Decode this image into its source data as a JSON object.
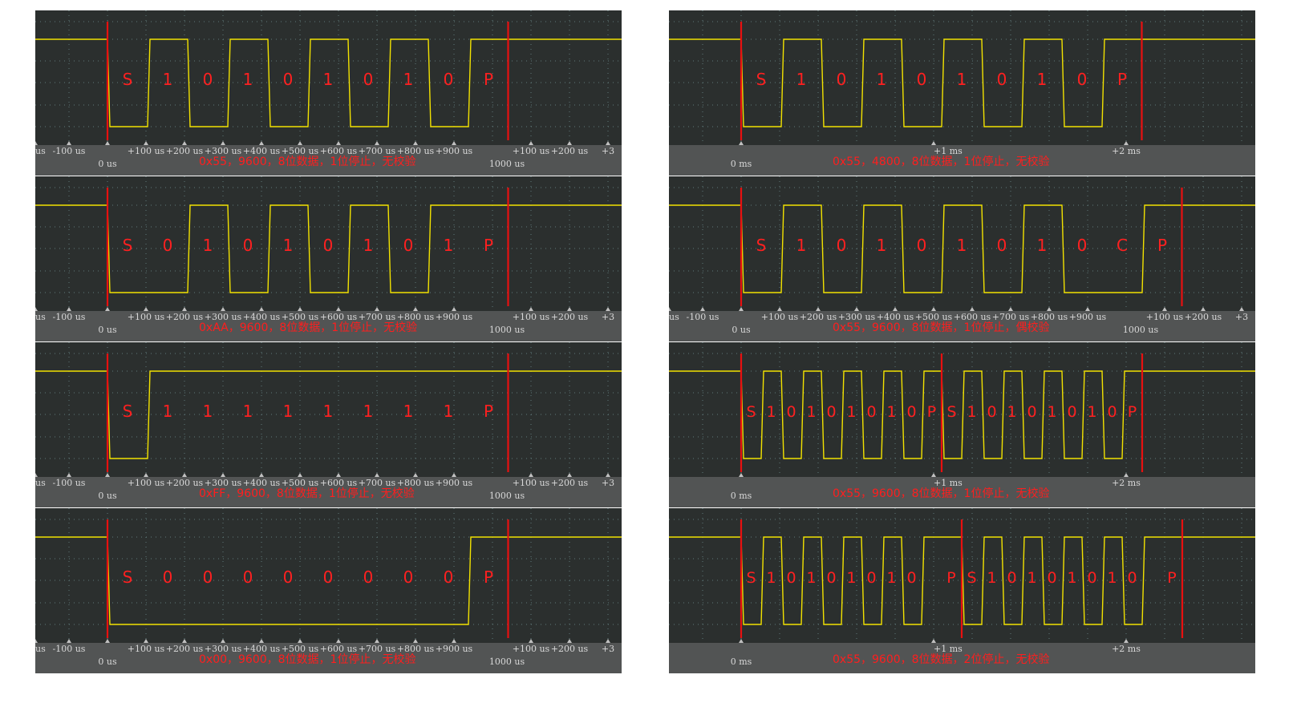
{
  "colors": {
    "panel_bg": "#2b2f2e",
    "axis_strip_bg": "#525454",
    "signal": "#f2e200",
    "marker": "#e81010",
    "label": "#ff2020",
    "caption": "#ff1e1e",
    "grid": "#5f7a7a",
    "tick_text": "#d8d8d8"
  },
  "panels": [
    {
      "id": "0x55-9600-8n1",
      "caption": "0x55，9600，8位数据，1位停止，无校验",
      "bits": [
        "S",
        "1",
        "0",
        "1",
        "0",
        "1",
        "0",
        "1",
        "0",
        "P"
      ],
      "levels": [
        0,
        1,
        0,
        1,
        0,
        1,
        0,
        1,
        0
      ],
      "scale": "us",
      "tick_labels": [
        "us",
        "-100 us",
        "+100 us",
        "+200 us",
        "+300 us",
        "+400 us",
        "+500 us",
        "+600 us",
        "+700 us",
        "+800 us",
        "+900 us",
        "+100 us",
        "+200 us",
        "+3"
      ],
      "zero_label": "0 us",
      "end_label": "1000 us"
    },
    {
      "id": "0xAA-9600-8n1",
      "caption": "0xAA，9600，8位数据，1位停止，无校验",
      "bits": [
        "S",
        "0",
        "1",
        "0",
        "1",
        "0",
        "1",
        "0",
        "1",
        "P"
      ],
      "levels": [
        0,
        0,
        1,
        0,
        1,
        0,
        1,
        0,
        1
      ],
      "scale": "us",
      "tick_labels": [
        "us",
        "-100 us",
        "+100 us",
        "+200 us",
        "+300 us",
        "+400 us",
        "+500 us",
        "+600 us",
        "+700 us",
        "+800 us",
        "+900 us",
        "+100 us",
        "+200 us",
        "+3"
      ],
      "zero_label": "0 us",
      "end_label": "1000 us"
    },
    {
      "id": "0xFF-9600-8n1",
      "caption": "0xFF，9600，8位数据，1位停止，无校验",
      "bits": [
        "S",
        "1",
        "1",
        "1",
        "1",
        "1",
        "1",
        "1",
        "1",
        "P"
      ],
      "levels": [
        0,
        1,
        1,
        1,
        1,
        1,
        1,
        1,
        1
      ],
      "scale": "us",
      "tick_labels": [
        "us",
        "-100 us",
        "+100 us",
        "+200 us",
        "+300 us",
        "+400 us",
        "+500 us",
        "+600 us",
        "+700 us",
        "+800 us",
        "+900 us",
        "+100 us",
        "+200 us",
        "+3"
      ],
      "zero_label": "0 us",
      "end_label": "1000 us"
    },
    {
      "id": "0x00-9600-8n1",
      "caption": "0x00，9600，8位数据，1位停止，无校验",
      "bits": [
        "S",
        "0",
        "0",
        "0",
        "0",
        "0",
        "0",
        "0",
        "0",
        "P"
      ],
      "levels": [
        0,
        0,
        0,
        0,
        0,
        0,
        0,
        0,
        0
      ],
      "scale": "us",
      "tick_labels": [
        "us",
        "-100 us",
        "+100 us",
        "+200 us",
        "+300 us",
        "+400 us",
        "+500 us",
        "+600 us",
        "+700 us",
        "+800 us",
        "+900 us",
        "+100 us",
        "+200 us",
        "+3"
      ],
      "zero_label": "0 us",
      "end_label": "1000 us"
    },
    {
      "id": "0x55-4800-8n1",
      "caption": "0x55，4800，8位数据，1位停止，无校验",
      "bits": [
        "S",
        "1",
        "0",
        "1",
        "0",
        "1",
        "0",
        "1",
        "0",
        "P"
      ],
      "levels": [
        0,
        1,
        0,
        1,
        0,
        1,
        0,
        1,
        0
      ],
      "scale": "ms",
      "tick_labels": [
        "+1 ms",
        "+2 ms"
      ],
      "zero_label": "0 ms",
      "end_label": ""
    },
    {
      "id": "0x55-9600-8e1",
      "caption": "0x55，9600，8位数据，1位停止，偶校验",
      "bits": [
        "S",
        "1",
        "0",
        "1",
        "0",
        "1",
        "0",
        "1",
        "0",
        "C",
        "P"
      ],
      "levels": [
        0,
        1,
        0,
        1,
        0,
        1,
        0,
        1,
        0,
        0
      ],
      "scale": "us",
      "tick_labels": [
        "us",
        "-100 us",
        "+100 us",
        "+200 us",
        "+300 us",
        "+400 us",
        "+500 us",
        "+600 us",
        "+700 us",
        "+800 us",
        "+900 us",
        "+100 us",
        "+200 us",
        "+3"
      ],
      "zero_label": "0 us",
      "end_label": "1000 us"
    },
    {
      "id": "0x55x2-9600-8n1",
      "caption": "0x55，9600，8位数据，1位停止，无校验",
      "frames": [
        {
          "bits": [
            "S",
            "1",
            "0",
            "1",
            "0",
            "1",
            "0",
            "1",
            "0",
            "P"
          ],
          "levels": [
            0,
            1,
            0,
            1,
            0,
            1,
            0,
            1,
            0
          ],
          "stop_bits": 1
        },
        {
          "bits": [
            "S",
            "1",
            "0",
            "1",
            "0",
            "1",
            "0",
            "1",
            "0",
            "P"
          ],
          "levels": [
            0,
            1,
            0,
            1,
            0,
            1,
            0,
            1,
            0
          ],
          "stop_bits": 1
        }
      ],
      "scale": "ms",
      "tick_labels": [
        "+1 ms",
        "+2 ms"
      ],
      "zero_label": "0 ms",
      "end_label": ""
    },
    {
      "id": "0x55x2-9600-8n2",
      "caption": "0x55，9600，8位数据，2位停止，无校验",
      "frames": [
        {
          "bits": [
            "S",
            "1",
            "0",
            "1",
            "0",
            "1",
            "0",
            "1",
            "0",
            "P"
          ],
          "levels": [
            0,
            1,
            0,
            1,
            0,
            1,
            0,
            1,
            0
          ],
          "stop_bits": 2
        },
        {
          "bits": [
            "S",
            "1",
            "0",
            "1",
            "0",
            "1",
            "0",
            "1",
            "0",
            "P"
          ],
          "levels": [
            0,
            1,
            0,
            1,
            0,
            1,
            0,
            1,
            0
          ],
          "stop_bits": 2
        }
      ],
      "scale": "ms",
      "tick_labels": [
        "+1 ms",
        "+2 ms"
      ],
      "zero_label": "0 ms",
      "end_label": ""
    }
  ]
}
